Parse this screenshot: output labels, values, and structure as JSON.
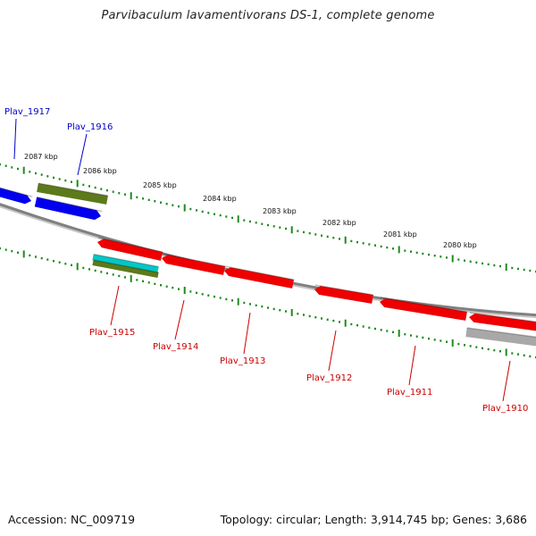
{
  "title": "Parvibaculum lavamentivorans DS-1, complete genome",
  "footer": {
    "accession": "Accession: NC_009719",
    "summary": "Topology: circular; Length: 3,914,745 bp; Genes: 3,686"
  },
  "colors": {
    "forward_label": "#0000cc",
    "reverse_label": "#cc0000",
    "tick": "#1e8a1e",
    "backbone": "#808080",
    "gene_blue": "#0000ee",
    "gene_red": "#ee0000",
    "gene_olive": "#5c7a1a",
    "gene_cyan": "#00c8c8",
    "gene_gray": "#a8a8a8"
  },
  "scale_labels": [
    {
      "text": "2087 kbp",
      "label_id": "kbp-2087"
    },
    {
      "text": "2086 kbp",
      "label_id": "kbp-2086"
    },
    {
      "text": "2085 kbp",
      "label_id": "kbp-2085"
    },
    {
      "text": "2084 kbp",
      "label_id": "kbp-2084"
    },
    {
      "text": "2083 kbp",
      "label_id": "kbp-2083"
    },
    {
      "text": "2082 kbp",
      "label_id": "kbp-2082"
    },
    {
      "text": "2081 kbp",
      "label_id": "kbp-2081"
    },
    {
      "text": "2080 kbp",
      "label_id": "kbp-2080"
    }
  ],
  "genes": [
    {
      "name": "Plav_1917",
      "strand": "forward",
      "color": "gene_blue"
    },
    {
      "name": "Plav_1916",
      "strand": "forward",
      "color": "gene_blue"
    },
    {
      "name": "Plav_1915",
      "strand": "reverse",
      "color": "gene_red"
    },
    {
      "name": "Plav_1914",
      "strand": "reverse",
      "color": "gene_red"
    },
    {
      "name": "Plav_1913",
      "strand": "reverse",
      "color": "gene_red"
    },
    {
      "name": "Plav_1912",
      "strand": "reverse",
      "color": "gene_red"
    },
    {
      "name": "Plav_1911",
      "strand": "reverse",
      "color": "gene_red"
    },
    {
      "name": "Plav_1910",
      "strand": "reverse",
      "color": "gene_red"
    }
  ]
}
